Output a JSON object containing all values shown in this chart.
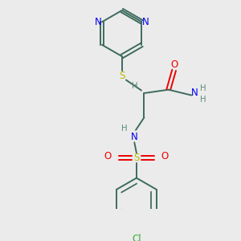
{
  "bg_color": "#ebebeb",
  "bond_color": "#3d6b5e",
  "N_color": "#0000ee",
  "O_color": "#ee0000",
  "S_color": "#bbbb00",
  "Cl_color": "#33aa33",
  "H_color": "#5a8a7a",
  "lw": 1.4,
  "fs": 8.5,
  "fs_small": 7.2,
  "xlim": [
    0,
    3
  ],
  "ylim": [
    0,
    3
  ]
}
